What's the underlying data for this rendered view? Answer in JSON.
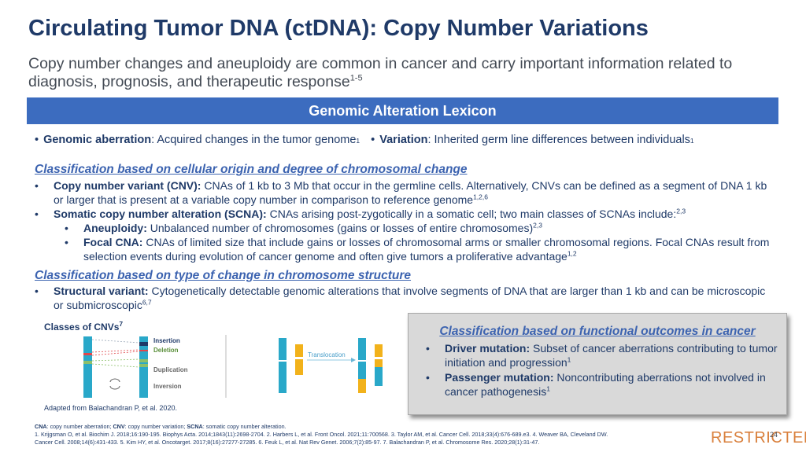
{
  "title": "Circulating Tumor DNA (ctDNA): Copy Number Variations",
  "subtitle": {
    "text": "Copy number changes and aneuploidy are common in cancer and carry important information related to diagnosis, prognosis, and therapeutic response",
    "refs": "1-5"
  },
  "lexicon": {
    "label": "Genomic Alteration Lexicon"
  },
  "definitions": [
    {
      "term": "Genomic aberration",
      "text": ": Acquired changes in the tumor genome",
      "refs": "1"
    },
    {
      "term": "Variation",
      "text": ": Inherited germ line differences between individuals",
      "refs": "1"
    }
  ],
  "section_cellular": {
    "heading": "Classification based on cellular origin and degree of chromosomal change",
    "items": [
      {
        "term": "Copy number variant (CNV):",
        "text": " CNAs of 1 kb to 3 Mb that occur in the germline cells. Alternatively, CNVs can be defined as a segment of DNA 1 kb or larger that is present at a variable copy number in comparison to reference genome",
        "refs": "1,2,6"
      },
      {
        "term": "Somatic copy number alteration (SCNA):",
        "text": " CNAs arising post-zygotically in a somatic cell; two main classes of SCNAs include:",
        "refs": "2,3"
      },
      {
        "term": "Aneuploidy:",
        "text": " Unbalanced number of chromosomes (gains or losses of entire chromosomes)",
        "refs": "2,3"
      },
      {
        "term": "Focal CNA:",
        "text": " CNAs of limited size that include gains or losses of chromosomal arms or smaller chromosomal regions. Focal CNAs result from selection events during evolution of cancer genome and often give tumors a proliferative advantage",
        "refs": "1,2"
      }
    ]
  },
  "section_structural": {
    "heading": "Classification based on type of change in chromosome structure",
    "items": [
      {
        "term": "Structural variant:",
        "text": " Cytogenetically detectable genomic alterations that involve segments of DNA that are larger than 1 kb and can be microscopic or submicroscopic",
        "refs": "6,7"
      }
    ]
  },
  "cnv_figure": {
    "title": "Classes of CNVs",
    "title_ref": "7",
    "labels": {
      "insertion": "Insertion",
      "deletion": "Deletion",
      "duplication": "Duplication",
      "inversion": "Inversion",
      "translocation": "Translocation"
    },
    "caption": "Adapted from Balachandran P, et al. 2020.",
    "colors": {
      "chromosome": "#29a8c9",
      "translocated": "#f2b21b",
      "insertion": "#1f3a68",
      "deletion": "#e0464b",
      "duplication": "#8cbf6a",
      "deletion_label": "#5a8f3a"
    }
  },
  "section_functional": {
    "heading": "Classification based on functional outcomes in cancer",
    "items": [
      {
        "term": "Driver mutation:",
        "text": " Subset of cancer aberrations contributing to tumor initiation and progression",
        "refs": "1"
      },
      {
        "term": "Passenger mutation:",
        "text": " Noncontributing aberrations not involved in cancer pathogenesis",
        "refs": "1"
      }
    ]
  },
  "footer": {
    "abbreviations": [
      {
        "abbr": "CNA",
        "text": ": copy number aberration; "
      },
      {
        "abbr": "CNV",
        "text": ": copy number variation; "
      },
      {
        "abbr": "SCNA",
        "text": ": somatic copy number alteration."
      }
    ],
    "references_line1": "1. Krijgsman O, et al. Biochim J. 2018;16:190-195. Biophys Acta. 2014;1843(11):2698-2704. 2. Harbers L, et al. Front Oncol. 2021;11:700568. 3. Taylor AM, et al. Cancer Cell. 2018;33(4):676-689.e3. 4. Weaver BA, Cleveland DW.",
    "references_line2": "Cancer Cell. 2008;14(6):431-433. 5. Kim HY, et al. Oncotarget. 2017;8(16):27277-27285. 6. Feuk L, et al. Nat Rev Genet. 2006;7(2):85-97. 7. Balachandran P, et al. Chromosome Res. 2020;28(1):31-47."
  },
  "classification_label": "RESTRICTED",
  "page_number": "24",
  "colors": {
    "title": "#1f3a68",
    "bar": "#3c6cbf",
    "section_heading": "#3c63b0",
    "restricted": "#d9803d"
  }
}
